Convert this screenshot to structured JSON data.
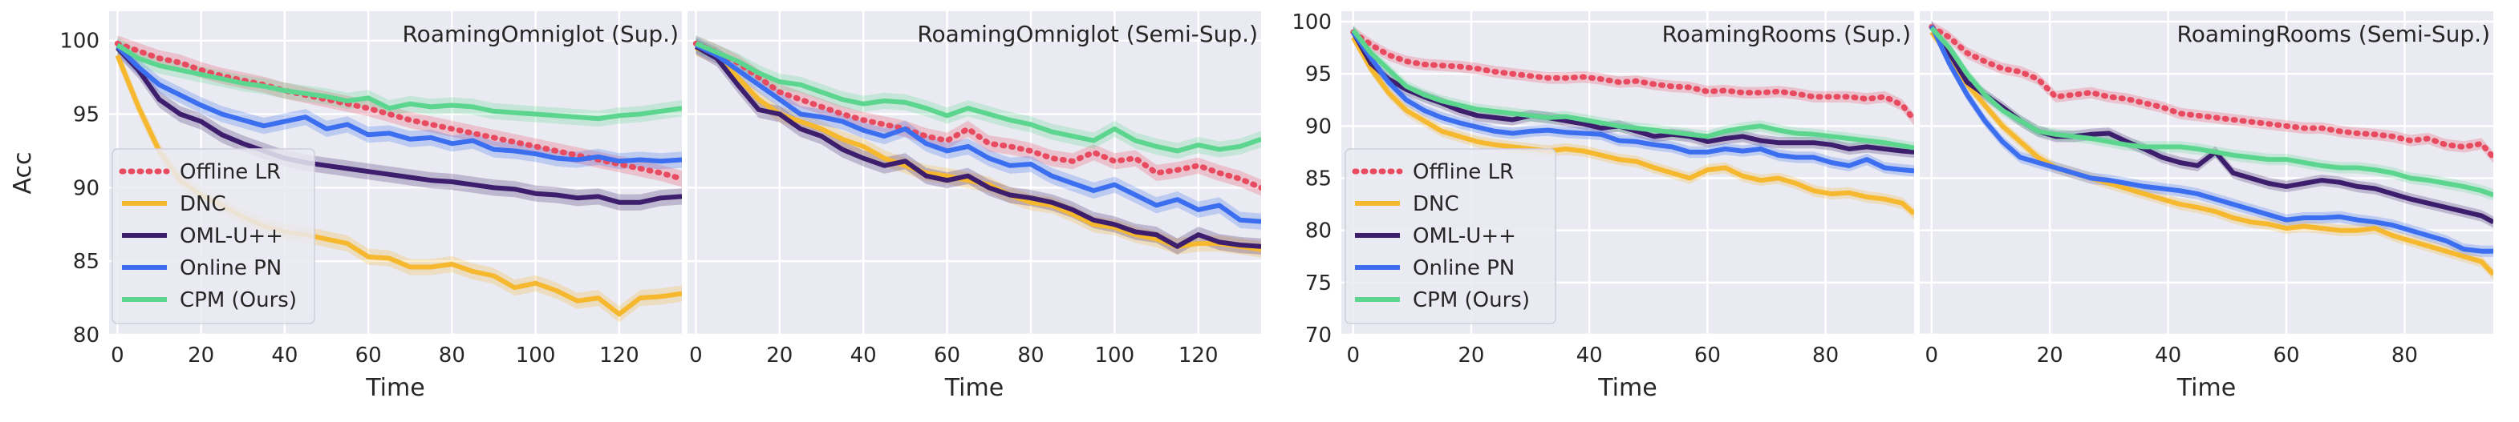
{
  "series_styles": [
    {
      "key": "offline_lr",
      "color": "#e84a5f",
      "dash": true
    },
    {
      "key": "dnc",
      "color": "#f5b82e",
      "dash": false
    },
    {
      "key": "oml",
      "color": "#3d1e6d",
      "dash": false
    },
    {
      "key": "online_pn",
      "color": "#3b6ff0",
      "dash": false
    },
    {
      "key": "cpm",
      "color": "#5cd68e",
      "dash": false
    }
  ],
  "chart_data": [
    {
      "type": "line",
      "title": "RoamingOmniglot (Sup.)",
      "xlabel": "Time",
      "ylabel": "Acc",
      "xlim": [
        -2,
        135
      ],
      "ylim": [
        80,
        102
      ],
      "xticks": [
        0,
        20,
        40,
        60,
        80,
        100,
        120
      ],
      "yticks": [
        80,
        85,
        90,
        95,
        100
      ],
      "grid": true,
      "legend": "left",
      "legend_labels": [
        "Offline LR",
        "DNC",
        "OML-U++",
        "Online PN",
        "CPM (Ours)"
      ],
      "x": [
        0,
        5,
        10,
        15,
        20,
        25,
        30,
        35,
        40,
        45,
        50,
        55,
        60,
        65,
        70,
        75,
        80,
        85,
        90,
        95,
        100,
        105,
        110,
        115,
        120,
        125,
        130,
        135
      ],
      "series": [
        {
          "values": [
            99.8,
            99.3,
            98.8,
            98.5,
            98.0,
            97.6,
            97.3,
            97.0,
            96.6,
            96.3,
            96.0,
            95.7,
            95.4,
            95.0,
            94.6,
            94.3,
            94.0,
            93.7,
            93.4,
            93.1,
            92.8,
            92.5,
            92.2,
            91.9,
            91.6,
            91.3,
            91.0,
            90.6
          ]
        },
        {
          "values": [
            99.0,
            95.5,
            92.5,
            90.5,
            89.5,
            88.8,
            88.0,
            87.4,
            87.0,
            86.8,
            86.5,
            86.2,
            85.3,
            85.2,
            84.6,
            84.6,
            84.8,
            84.3,
            84.0,
            83.2,
            83.5,
            83.0,
            82.3,
            82.5,
            81.4,
            82.5,
            82.6,
            82.8
          ]
        },
        {
          "values": [
            99.5,
            98.0,
            96.0,
            95.0,
            94.5,
            93.6,
            93.0,
            92.5,
            92.0,
            91.7,
            91.5,
            91.3,
            91.1,
            90.9,
            90.7,
            90.5,
            90.4,
            90.2,
            90.0,
            89.9,
            89.6,
            89.5,
            89.3,
            89.4,
            89.0,
            89.0,
            89.3,
            89.4
          ]
        },
        {
          "values": [
            99.6,
            98.2,
            97.0,
            96.3,
            95.6,
            95.0,
            94.6,
            94.2,
            94.5,
            94.8,
            94.0,
            94.3,
            93.6,
            93.7,
            93.3,
            93.4,
            93.0,
            93.2,
            92.6,
            92.5,
            92.3,
            92.0,
            91.9,
            92.1,
            91.8,
            91.9,
            91.8,
            91.9
          ]
        },
        {
          "values": [
            99.7,
            98.8,
            98.3,
            98.0,
            97.7,
            97.4,
            97.1,
            96.9,
            96.6,
            96.4,
            96.2,
            95.9,
            96.1,
            95.4,
            95.7,
            95.5,
            95.6,
            95.5,
            95.2,
            95.1,
            95.0,
            94.9,
            94.8,
            94.7,
            94.9,
            95.0,
            95.2,
            95.4
          ]
        }
      ]
    },
    {
      "type": "line",
      "title": "RoamingOmniglot (Semi-Sup.)",
      "xlabel": "Time",
      "ylabel": "",
      "xlim": [
        -2,
        135
      ],
      "ylim": [
        80,
        102
      ],
      "xticks": [
        0,
        20,
        40,
        60,
        80,
        100,
        120
      ],
      "yticks": [
        80,
        85,
        90,
        95,
        100
      ],
      "grid": true,
      "x": [
        0,
        5,
        10,
        15,
        20,
        25,
        30,
        35,
        40,
        45,
        50,
        55,
        60,
        65,
        70,
        75,
        80,
        85,
        90,
        95,
        100,
        105,
        110,
        115,
        120,
        125,
        130,
        135
      ],
      "series": [
        {
          "values": [
            99.8,
            99.2,
            98.5,
            97.5,
            96.5,
            96.0,
            95.5,
            95.0,
            94.6,
            94.3,
            94.0,
            93.5,
            93.2,
            94.0,
            93.0,
            92.8,
            92.5,
            92.0,
            91.8,
            92.4,
            91.8,
            92.0,
            91.0,
            91.2,
            91.5,
            91.0,
            90.6,
            90.0
          ]
        },
        {
          "values": [
            99.5,
            99.0,
            97.5,
            96.0,
            95.0,
            94.5,
            94.0,
            93.3,
            92.8,
            92.0,
            91.5,
            91.0,
            90.8,
            90.5,
            90.2,
            89.5,
            89.0,
            88.8,
            88.2,
            87.5,
            87.3,
            86.8,
            86.5,
            86.0,
            86.2,
            86.2,
            86.0,
            85.8
          ]
        },
        {
          "values": [
            99.6,
            98.8,
            97.0,
            95.3,
            95.0,
            94.0,
            93.5,
            92.6,
            92.0,
            91.5,
            91.8,
            90.8,
            90.5,
            90.8,
            90.0,
            89.5,
            89.3,
            89.0,
            88.5,
            87.8,
            87.5,
            87.0,
            86.8,
            86.0,
            86.8,
            86.3,
            86.1,
            86.0
          ]
        },
        {
          "values": [
            99.7,
            99.0,
            98.0,
            97.0,
            96.0,
            95.0,
            94.8,
            94.5,
            93.9,
            93.5,
            94.0,
            93.0,
            92.5,
            92.8,
            92.0,
            91.5,
            91.6,
            90.8,
            90.3,
            89.8,
            90.2,
            89.5,
            88.8,
            89.2,
            88.5,
            88.8,
            87.8,
            87.7
          ]
        },
        {
          "values": [
            99.8,
            99.2,
            98.6,
            97.8,
            97.2,
            97.0,
            96.5,
            96.0,
            95.7,
            95.9,
            95.8,
            95.4,
            94.9,
            95.4,
            95.0,
            94.6,
            94.3,
            93.8,
            93.5,
            93.2,
            94.0,
            93.2,
            92.8,
            92.5,
            92.9,
            92.6,
            92.8,
            93.3
          ]
        }
      ]
    },
    {
      "type": "line",
      "title": "RoamingRooms (Sup.)",
      "xlabel": "Time",
      "ylabel": "",
      "xlim": [
        -2,
        95
      ],
      "ylim": [
        70,
        101
      ],
      "xticks": [
        0,
        20,
        40,
        60,
        80
      ],
      "yticks": [
        70,
        75,
        80,
        85,
        90,
        95,
        100
      ],
      "grid": true,
      "legend": "left",
      "legend_labels": [
        "Offline LR",
        "DNC",
        "OML-U++",
        "Online PN",
        "CPM (Ours)"
      ],
      "x": [
        0,
        3,
        6,
        9,
        12,
        15,
        18,
        21,
        24,
        27,
        30,
        33,
        36,
        39,
        42,
        45,
        48,
        51,
        54,
        57,
        60,
        63,
        66,
        69,
        72,
        75,
        78,
        81,
        84,
        87,
        90,
        93,
        95
      ],
      "series": [
        {
          "values": [
            99.0,
            97.8,
            96.8,
            96.2,
            95.9,
            95.8,
            95.7,
            95.5,
            95.2,
            95.0,
            94.8,
            94.6,
            94.6,
            94.7,
            94.5,
            94.2,
            94.3,
            94.0,
            93.8,
            93.7,
            93.3,
            93.4,
            93.2,
            93.2,
            93.3,
            93.1,
            92.8,
            92.8,
            92.8,
            92.6,
            92.8,
            92.0,
            90.6
          ]
        },
        {
          "values": [
            98.5,
            95.5,
            93.2,
            91.5,
            90.5,
            89.5,
            89.0,
            88.5,
            88.2,
            88.0,
            87.8,
            87.6,
            87.8,
            87.6,
            87.2,
            86.8,
            86.6,
            86.0,
            85.5,
            85.0,
            85.8,
            86.0,
            85.2,
            84.8,
            85.0,
            84.5,
            83.8,
            83.5,
            83.6,
            83.2,
            83.0,
            82.6,
            81.6
          ]
        },
        {
          "values": [
            99.0,
            96.0,
            94.5,
            93.5,
            92.8,
            92.2,
            91.5,
            91.0,
            90.8,
            90.6,
            91.0,
            90.8,
            90.5,
            90.2,
            89.8,
            90.0,
            89.5,
            89.0,
            89.2,
            89.0,
            88.5,
            88.8,
            89.0,
            88.6,
            88.4,
            88.4,
            88.4,
            88.2,
            87.8,
            88.0,
            87.8,
            87.6,
            87.5
          ]
        },
        {
          "values": [
            99.0,
            96.5,
            94.2,
            92.5,
            91.5,
            90.8,
            90.3,
            89.9,
            89.5,
            89.3,
            89.5,
            89.6,
            89.4,
            89.3,
            89.2,
            88.6,
            88.5,
            88.2,
            88.0,
            87.5,
            87.5,
            87.8,
            87.6,
            87.8,
            87.2,
            87.0,
            87.0,
            86.5,
            86.2,
            86.8,
            86.0,
            85.8,
            85.7
          ]
        },
        {
          "values": [
            99.2,
            97.0,
            95.4,
            93.8,
            93.0,
            92.4,
            92.0,
            91.6,
            91.4,
            91.2,
            91.0,
            90.8,
            90.9,
            90.6,
            90.3,
            90.0,
            89.8,
            89.6,
            89.4,
            89.2,
            89.0,
            89.5,
            89.8,
            90.0,
            89.6,
            89.3,
            89.2,
            89.0,
            88.8,
            88.6,
            88.4,
            88.1,
            87.9
          ]
        }
      ]
    },
    {
      "type": "line",
      "title": "RoamingRooms (Semi-Sup.)",
      "xlabel": "Time",
      "ylabel": "",
      "xlim": [
        -2,
        95
      ],
      "ylim": [
        70,
        101
      ],
      "xticks": [
        0,
        20,
        40,
        60,
        80
      ],
      "yticks": [
        70,
        75,
        80,
        85,
        90,
        95,
        100
      ],
      "grid": true,
      "x": [
        0,
        3,
        6,
        9,
        12,
        15,
        18,
        21,
        24,
        27,
        30,
        33,
        36,
        39,
        42,
        45,
        48,
        51,
        54,
        57,
        60,
        63,
        66,
        69,
        72,
        75,
        78,
        81,
        84,
        87,
        90,
        93,
        95
      ],
      "series": [
        {
          "values": [
            99.5,
            98.5,
            97.0,
            96.2,
            95.5,
            95.2,
            94.5,
            92.8,
            93.0,
            93.2,
            92.8,
            92.6,
            92.2,
            91.8,
            91.2,
            91.0,
            90.8,
            90.6,
            90.4,
            90.2,
            90.0,
            89.8,
            89.8,
            89.5,
            89.3,
            89.2,
            89.0,
            88.6,
            88.8,
            88.2,
            88.0,
            88.3,
            87.0
          ]
        },
        {
          "values": [
            99.0,
            96.8,
            94.0,
            92.0,
            90.0,
            88.5,
            87.0,
            86.0,
            85.5,
            85.0,
            84.5,
            84.0,
            83.5,
            83.0,
            82.5,
            82.2,
            81.8,
            81.2,
            80.8,
            80.6,
            80.2,
            80.4,
            80.2,
            80.0,
            80.0,
            80.2,
            79.5,
            79.0,
            78.5,
            78.0,
            77.5,
            77.0,
            75.8
          ]
        },
        {
          "values": [
            99.5,
            97.0,
            94.2,
            93.0,
            91.8,
            90.5,
            89.5,
            89.0,
            89.0,
            89.2,
            89.3,
            88.5,
            87.8,
            87.0,
            86.5,
            86.2,
            87.5,
            85.5,
            85.0,
            84.5,
            84.2,
            84.5,
            84.8,
            84.6,
            84.2,
            84.0,
            83.5,
            83.0,
            82.6,
            82.2,
            81.8,
            81.4,
            80.8
          ]
        },
        {
          "values": [
            99.6,
            96.0,
            93.0,
            90.5,
            88.5,
            87.0,
            86.5,
            86.0,
            85.5,
            85.0,
            84.8,
            84.5,
            84.2,
            84.0,
            83.8,
            83.5,
            83.0,
            82.5,
            82.0,
            81.5,
            81.0,
            81.2,
            81.2,
            81.3,
            81.0,
            80.8,
            80.5,
            80.0,
            79.5,
            79.0,
            78.2,
            78.0,
            78.0
          ]
        },
        {
          "values": [
            99.4,
            97.5,
            95.0,
            93.0,
            91.5,
            90.5,
            89.5,
            89.2,
            89.0,
            88.8,
            88.5,
            88.2,
            88.0,
            88.0,
            88.0,
            87.8,
            87.5,
            87.2,
            87.0,
            86.8,
            86.8,
            86.5,
            86.2,
            86.0,
            86.0,
            85.8,
            85.5,
            85.0,
            84.8,
            84.5,
            84.2,
            83.8,
            83.4
          ]
        }
      ]
    }
  ]
}
